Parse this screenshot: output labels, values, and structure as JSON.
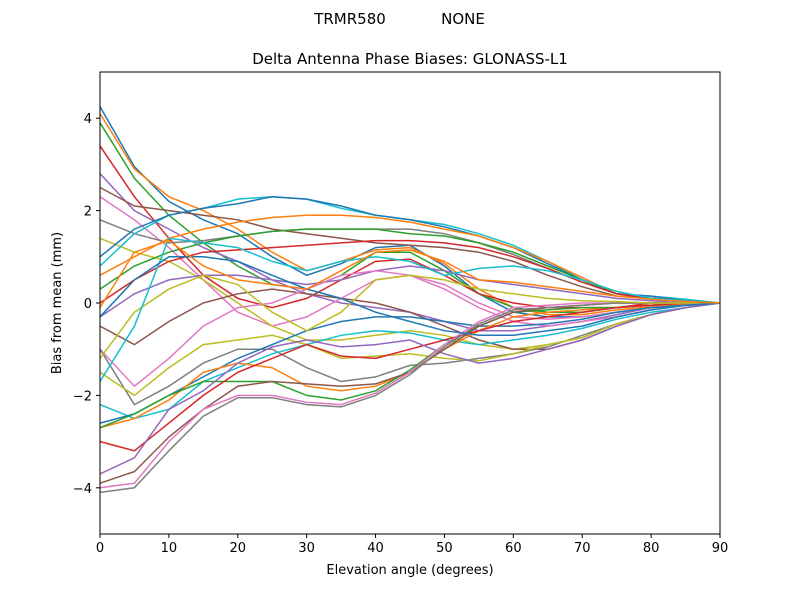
{
  "chart_data": {
    "type": "line",
    "suptitle_left": "TRMR580",
    "suptitle_right": "NONE",
    "title": "Delta Antenna Phase Biases: GLONASS-L1",
    "xlabel": "Elevation angle (degrees)",
    "ylabel": "Bias from mean (mm)",
    "xlim": [
      0,
      90
    ],
    "ylim": [
      -5,
      5
    ],
    "xticks": [
      0,
      10,
      20,
      30,
      40,
      50,
      60,
      70,
      80,
      90
    ],
    "yticks": [
      -4,
      -2,
      0,
      2,
      4
    ],
    "grid": false,
    "x": [
      0,
      5,
      10,
      15,
      20,
      25,
      30,
      35,
      40,
      45,
      50,
      55,
      60,
      65,
      70,
      75,
      80,
      85,
      90
    ],
    "colors": [
      "#1f77b4",
      "#ff7f0e",
      "#2ca02c",
      "#d62728",
      "#9467bd",
      "#8c564b",
      "#e377c2",
      "#7f7f7f",
      "#bcbd22",
      "#17becf"
    ],
    "series": [
      {
        "values": [
          4.25,
          2.95,
          2.2,
          1.8,
          1.5,
          1.0,
          0.6,
          0.85,
          1.2,
          1.25,
          0.8,
          0.2,
          -0.2,
          -0.3,
          -0.3,
          -0.2,
          -0.1,
          -0.03,
          0
        ]
      },
      {
        "values": [
          4.1,
          2.9,
          2.3,
          2.0,
          1.6,
          1.1,
          0.7,
          0.9,
          1.15,
          1.2,
          0.85,
          0.3,
          -0.1,
          -0.25,
          -0.25,
          -0.15,
          -0.08,
          -0.02,
          0
        ]
      },
      {
        "values": [
          3.9,
          2.7,
          1.9,
          1.3,
          0.8,
          0.4,
          0.3,
          0.6,
          1.1,
          1.1,
          0.7,
          0.2,
          -0.1,
          -0.2,
          -0.2,
          -0.1,
          -0.05,
          0,
          0
        ]
      },
      {
        "values": [
          3.4,
          2.3,
          1.4,
          0.6,
          0.1,
          -0.1,
          0.1,
          0.5,
          0.9,
          0.95,
          0.6,
          0.2,
          0,
          -0.1,
          -0.1,
          -0.1,
          0,
          0,
          0
        ]
      },
      {
        "values": [
          2.8,
          2.0,
          1.6,
          1.2,
          0.9,
          0.5,
          0.2,
          0.0,
          -0.1,
          -0.2,
          -0.4,
          -0.6,
          -0.6,
          -0.5,
          -0.4,
          -0.25,
          -0.1,
          -0.05,
          0
        ]
      },
      {
        "values": [
          2.5,
          2.1,
          2.0,
          1.9,
          1.8,
          1.6,
          1.5,
          1.4,
          1.3,
          1.25,
          1.2,
          1.1,
          0.9,
          0.6,
          0.35,
          0.15,
          0.1,
          0.05,
          0
        ]
      },
      {
        "values": [
          2.3,
          1.8,
          1.2,
          0.5,
          -0.2,
          -0.5,
          -0.3,
          0.1,
          0.5,
          0.6,
          0.4,
          0.0,
          -0.3,
          -0.35,
          -0.3,
          -0.2,
          -0.1,
          -0.05,
          0
        ]
      },
      {
        "values": [
          1.8,
          1.5,
          1.3,
          1.35,
          1.45,
          1.55,
          1.6,
          1.6,
          1.6,
          1.6,
          1.5,
          1.3,
          1.05,
          0.75,
          0.45,
          0.2,
          0.1,
          0.05,
          0
        ]
      },
      {
        "values": [
          1.4,
          1.1,
          0.9,
          0.5,
          0.0,
          -0.5,
          -0.8,
          -0.8,
          -0.7,
          -0.6,
          -0.7,
          -0.9,
          -1.0,
          -0.9,
          -0.75,
          -0.45,
          -0.25,
          -0.1,
          0
        ]
      },
      {
        "values": [
          0.8,
          1.5,
          1.9,
          2.05,
          2.25,
          2.3,
          2.25,
          2.05,
          1.9,
          1.8,
          1.7,
          1.5,
          1.25,
          0.9,
          0.5,
          0.2,
          0.15,
          0.08,
          0
        ]
      },
      {
        "values": [
          1.0,
          1.6,
          1.9,
          2.05,
          2.15,
          2.3,
          2.25,
          2.1,
          1.9,
          1.8,
          1.65,
          1.45,
          1.2,
          0.85,
          0.5,
          0.2,
          0.15,
          0.05,
          0
        ]
      },
      {
        "values": [
          0.6,
          1.0,
          1.4,
          1.6,
          1.75,
          1.85,
          1.9,
          1.9,
          1.85,
          1.75,
          1.6,
          1.45,
          1.2,
          0.9,
          0.55,
          0.2,
          0.1,
          0.05,
          0
        ]
      },
      {
        "values": [
          0.3,
          0.8,
          1.1,
          1.3,
          1.45,
          1.55,
          1.6,
          1.6,
          1.6,
          1.5,
          1.45,
          1.3,
          1.1,
          0.8,
          0.5,
          0.2,
          0.1,
          0.05,
          0
        ]
      },
      {
        "values": [
          0.0,
          0.5,
          0.9,
          1.1,
          1.15,
          1.2,
          1.25,
          1.3,
          1.35,
          1.35,
          1.3,
          1.2,
          1.0,
          0.75,
          0.45,
          0.2,
          0.1,
          0.05,
          0
        ]
      },
      {
        "values": [
          -0.3,
          0.2,
          0.5,
          0.6,
          0.6,
          0.5,
          0.4,
          0.5,
          0.7,
          0.8,
          0.7,
          0.5,
          0.4,
          0.3,
          0.2,
          0.1,
          0.05,
          0,
          0
        ]
      },
      {
        "values": [
          -0.5,
          -0.9,
          -0.4,
          0.0,
          0.2,
          0.3,
          0.2,
          0.1,
          0.0,
          -0.2,
          -0.5,
          -0.8,
          -1.0,
          -1.0,
          -0.8,
          -0.5,
          -0.25,
          -0.1,
          0
        ]
      },
      {
        "values": [
          -1.0,
          -1.8,
          -1.2,
          -0.5,
          -0.1,
          0.0,
          0.3,
          0.6,
          0.7,
          0.6,
          0.3,
          -0.1,
          -0.4,
          -0.5,
          -0.4,
          -0.3,
          -0.15,
          -0.05,
          0
        ]
      },
      {
        "values": [
          -1.0,
          -2.2,
          -1.8,
          -1.3,
          -1.0,
          -1.0,
          -1.4,
          -1.7,
          -1.6,
          -1.35,
          -1.3,
          -1.2,
          -1.1,
          -0.95,
          -0.7,
          -0.45,
          -0.25,
          -0.1,
          0
        ]
      },
      {
        "values": [
          -1.5,
          -2.0,
          -1.4,
          -0.9,
          -0.8,
          -0.7,
          -0.9,
          -1.2,
          -1.15,
          -1.1,
          -1.2,
          -1.25,
          -1.1,
          -0.9,
          -0.75,
          -0.45,
          -0.25,
          -0.1,
          0
        ]
      },
      {
        "values": [
          -2.2,
          -2.5,
          -2.3,
          -1.7,
          -1.4,
          -1.1,
          -0.9,
          -0.7,
          -0.6,
          -0.65,
          -0.8,
          -0.9,
          -0.8,
          -0.7,
          -0.55,
          -0.35,
          -0.2,
          -0.1,
          0
        ]
      },
      {
        "values": [
          -2.6,
          -2.4,
          -2.0,
          -1.6,
          -1.2,
          -0.9,
          -0.6,
          -0.4,
          -0.3,
          -0.3,
          -0.4,
          -0.5,
          -0.5,
          -0.45,
          -0.35,
          -0.2,
          -0.1,
          -0.05,
          0
        ]
      },
      {
        "values": [
          -2.7,
          -2.5,
          -2.1,
          -1.5,
          -1.3,
          -1.4,
          -1.8,
          -1.9,
          -1.8,
          -1.5,
          -1.0,
          -0.6,
          -0.3,
          -0.2,
          -0.15,
          -0.1,
          -0.05,
          0,
          0
        ]
      },
      {
        "values": [
          -2.7,
          -2.4,
          -2.0,
          -1.7,
          -1.7,
          -1.7,
          -2.0,
          -2.1,
          -1.9,
          -1.45,
          -0.9,
          -0.5,
          -0.2,
          -0.15,
          -0.1,
          -0.1,
          -0.05,
          0,
          0
        ]
      },
      {
        "values": [
          -3.0,
          -3.2,
          -2.6,
          -2.0,
          -1.5,
          -1.2,
          -0.9,
          -1.15,
          -1.2,
          -1.0,
          -0.8,
          -0.6,
          -0.4,
          -0.3,
          -0.2,
          -0.1,
          -0.05,
          0,
          0
        ]
      },
      {
        "values": [
          -3.7,
          -3.35,
          -2.3,
          -1.9,
          -1.3,
          -0.95,
          -0.8,
          -0.95,
          -0.9,
          -0.8,
          -1.1,
          -1.3,
          -1.2,
          -1.0,
          -0.8,
          -0.5,
          -0.25,
          -0.1,
          0
        ]
      },
      {
        "values": [
          -3.9,
          -3.65,
          -2.9,
          -2.3,
          -1.8,
          -1.7,
          -1.75,
          -1.8,
          -1.75,
          -1.5,
          -1.0,
          -0.5,
          -0.2,
          -0.1,
          -0.05,
          0,
          0,
          0,
          0
        ]
      },
      {
        "values": [
          -4.0,
          -3.9,
          -3.0,
          -2.3,
          -2.0,
          -2.0,
          -2.15,
          -2.2,
          -1.95,
          -1.5,
          -0.9,
          -0.4,
          -0.1,
          -0.05,
          0,
          0,
          0,
          0,
          0
        ]
      },
      {
        "values": [
          -4.1,
          -4.0,
          -3.2,
          -2.45,
          -2.05,
          -2.05,
          -2.2,
          -2.25,
          -2.0,
          -1.55,
          -0.95,
          -0.45,
          -0.15,
          -0.1,
          -0.05,
          0,
          0,
          0,
          0
        ]
      },
      {
        "values": [
          -1.2,
          -0.2,
          0.3,
          0.6,
          0.4,
          -0.2,
          -0.6,
          -0.2,
          0.5,
          0.6,
          0.5,
          0.3,
          0.2,
          0.1,
          0.05,
          0.03,
          0,
          0,
          0
        ]
      },
      {
        "values": [
          -1.7,
          -0.5,
          1.4,
          1.3,
          1.2,
          0.9,
          0.7,
          0.9,
          1.0,
          0.9,
          0.6,
          0.75,
          0.8,
          0.7,
          0.5,
          0.25,
          0.1,
          0.05,
          0
        ]
      },
      {
        "values": [
          -0.3,
          0.5,
          1.0,
          1.0,
          0.9,
          0.6,
          0.3,
          0.1,
          -0.2,
          -0.4,
          -0.6,
          -0.7,
          -0.7,
          -0.6,
          -0.5,
          -0.3,
          -0.15,
          -0.05,
          0
        ]
      },
      {
        "values": [
          -0.1,
          1.1,
          1.35,
          0.8,
          0.5,
          0.4,
          0.3,
          0.7,
          1.1,
          1.15,
          0.9,
          0.5,
          0.45,
          0.35,
          0.25,
          0.15,
          0.08,
          0.03,
          0
        ]
      }
    ]
  }
}
